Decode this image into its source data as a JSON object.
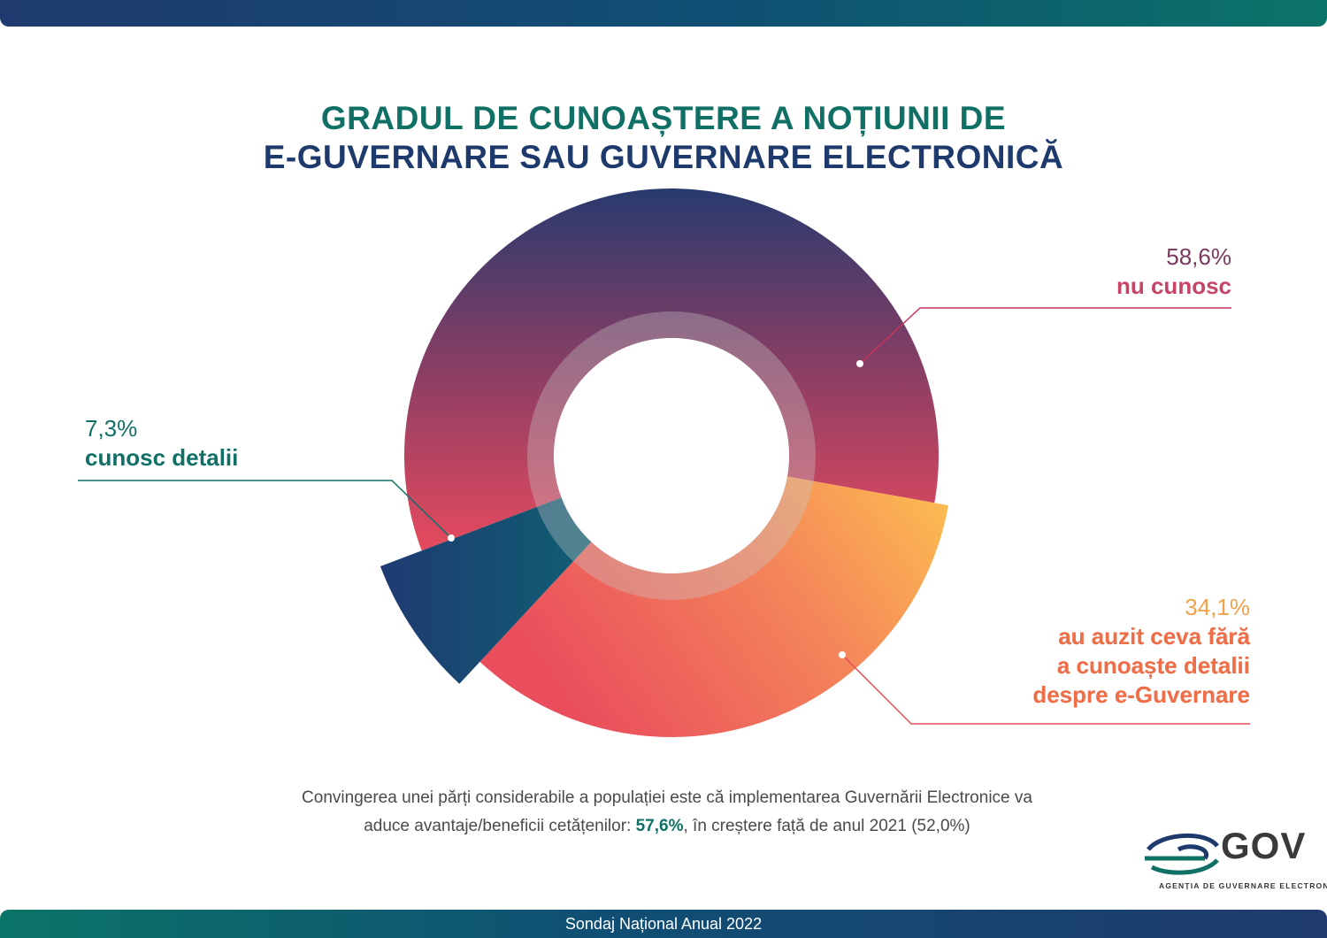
{
  "title": {
    "line1": "GRADUL DE CUNOAȘTERE A NOȚIUNII DE",
    "line2": "E-GUVERNARE SAU GUVERNARE ELECTRONICĂ"
  },
  "chart_data": {
    "type": "pie",
    "title": "GRADUL DE CUNOAȘTERE A NOȚIUNII DE E-GUVERNARE SAU GUVERNARE ELECTRONICĂ",
    "slices": [
      {
        "label": "nu cunosc",
        "value": 58.6,
        "value_label": "58,6%",
        "color": "#d94a63"
      },
      {
        "label": "au auzit ceva fără a cunoaște detalii despre e-Guvernare",
        "value": 34.1,
        "value_label": "34,1%",
        "color": "#f6a24e"
      },
      {
        "label": "cunosc detalii",
        "value": 7.3,
        "value_label": "7,3%",
        "color": "#1b3d70"
      }
    ],
    "style": "donut with exploded slice"
  },
  "labels": {
    "nu_cunosc": {
      "pct": "58,6%",
      "cat": "nu cunosc"
    },
    "au_auzit": {
      "pct": "34,1%",
      "cat1": "au auzit ceva fără",
      "cat2": "a cunoaște detalii",
      "cat3": "despre e-Guvernare"
    },
    "cunosc_detalii": {
      "pct": "7,3%",
      "cat": "cunosc detalii"
    }
  },
  "note": {
    "line1": "Convingerea unei părți considerabile a populației este că implementarea Guvernării Electronice va",
    "line2_before": "aduce avantaje/beneficii cetățenilor: ",
    "highlight": "57,6%",
    "line2_after": ", în creștere față de anul 2021 (52,0%)"
  },
  "logo": {
    "text": "GOV",
    "subtitle": "AGENȚIA DE GUVERNARE ELECTRONICĂ"
  },
  "footer": "Sondaj Național Anual 2022"
}
